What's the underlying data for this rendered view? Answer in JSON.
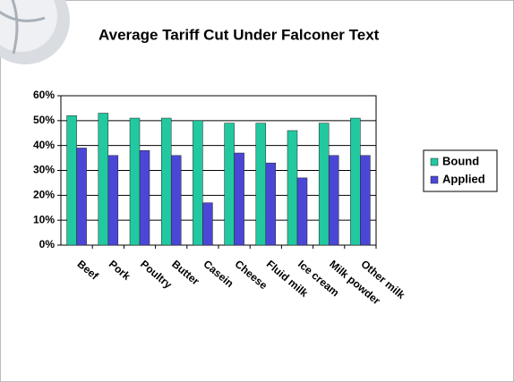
{
  "chart_data": {
    "type": "bar",
    "title": "Average Tariff Cut Under Falconer Text",
    "categories": [
      "Beef",
      "Pork",
      "Poultry",
      "Butter",
      "Casein",
      "Cheese",
      "Fluid milk",
      "Ice cream",
      "Milk powder",
      "Other milk"
    ],
    "series": [
      {
        "name": "Bound",
        "color": "#22c9a0",
        "values": [
          52,
          53,
          51,
          51,
          50,
          49,
          49,
          46,
          49,
          51
        ]
      },
      {
        "name": "Applied",
        "color": "#4b47d6",
        "values": [
          39,
          36,
          38,
          36,
          17,
          37,
          33,
          27,
          36,
          36
        ]
      }
    ],
    "ylim": [
      0,
      60
    ],
    "yticks": [
      {
        "value": 0,
        "label": "0%"
      },
      {
        "value": 10,
        "label": "10%"
      },
      {
        "value": 20,
        "label": "20%"
      },
      {
        "value": 30,
        "label": "30%"
      },
      {
        "value": 40,
        "label": "40%"
      },
      {
        "value": 50,
        "label": "50%"
      },
      {
        "value": 60,
        "label": "60%"
      }
    ],
    "grid": true,
    "legend": "right"
  }
}
